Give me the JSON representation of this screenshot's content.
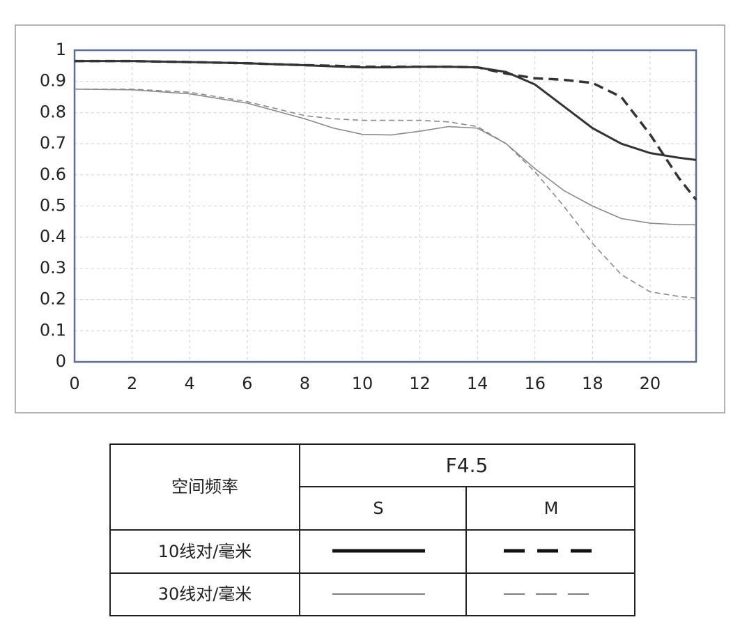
{
  "chart_data": {
    "type": "line",
    "x": [
      0,
      2,
      4,
      6,
      8,
      9,
      10,
      11,
      12,
      13,
      14,
      15,
      16,
      17,
      18,
      19,
      20,
      21,
      21.6
    ],
    "series": [
      {
        "color": "#333333",
        "width": 3,
        "style": "solid",
        "values": [
          0.965,
          0.965,
          0.962,
          0.958,
          0.952,
          0.948,
          0.945,
          0.945,
          0.947,
          0.947,
          0.945,
          0.93,
          0.89,
          0.82,
          0.75,
          0.7,
          0.67,
          0.655,
          0.648
        ]
      },
      {
        "color": "#333333",
        "width": 3.5,
        "style": "dashed",
        "values": [
          0.965,
          0.965,
          0.962,
          0.958,
          0.952,
          0.95,
          0.947,
          0.947,
          0.947,
          0.947,
          0.945,
          0.925,
          0.91,
          0.905,
          0.895,
          0.85,
          0.73,
          0.59,
          0.52
        ]
      },
      {
        "color": "#8a8a8a",
        "width": 1.6,
        "style": "solid",
        "values": [
          0.875,
          0.873,
          0.86,
          0.83,
          0.78,
          0.75,
          0.73,
          0.728,
          0.74,
          0.755,
          0.75,
          0.7,
          0.62,
          0.55,
          0.5,
          0.46,
          0.445,
          0.44,
          0.44
        ]
      },
      {
        "color": "#8a8a8a",
        "width": 1.6,
        "style": "dashed",
        "values": [
          0.875,
          0.875,
          0.865,
          0.835,
          0.79,
          0.78,
          0.775,
          0.775,
          0.775,
          0.77,
          0.755,
          0.7,
          0.61,
          0.5,
          0.38,
          0.28,
          0.225,
          0.21,
          0.205
        ]
      }
    ],
    "xlim": [
      0,
      21.6
    ],
    "xticks": [
      0,
      2,
      4,
      6,
      8,
      10,
      12,
      14,
      16,
      18,
      20
    ],
    "ylim": [
      0,
      1
    ],
    "yticks": [
      0,
      0.1,
      0.2,
      0.3,
      0.4,
      0.5,
      0.6,
      0.7,
      0.8,
      0.9,
      1
    ],
    "grid": true,
    "legend": {
      "header": "空间频率",
      "aperture": "F4.5",
      "columns": [
        "S",
        "M"
      ],
      "rows": [
        "10线对/毫米",
        "30线对/毫米"
      ]
    }
  }
}
